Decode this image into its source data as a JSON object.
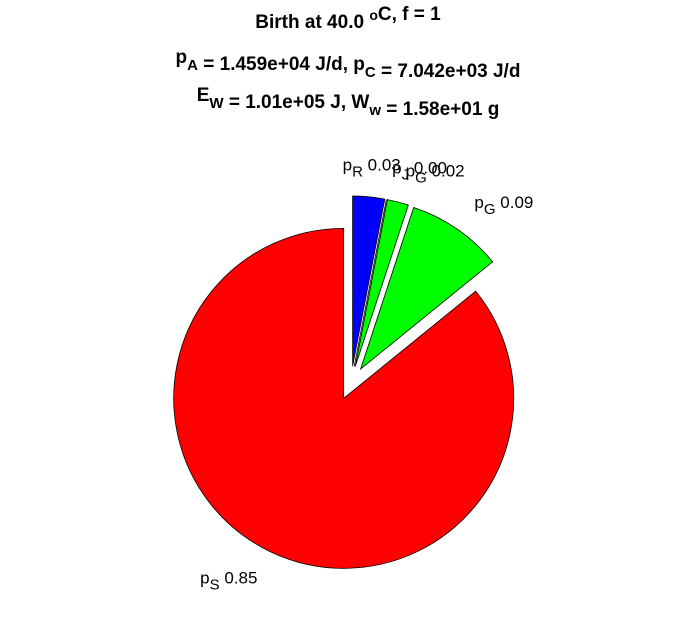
{
  "chart_data": {
    "type": "pie",
    "title_lines": [
      [
        {
          "text": "Birth at 40.0 "
        },
        {
          "sup": "o"
        },
        {
          "text": "C, f = 1"
        }
      ],
      [
        {
          "text": "p"
        },
        {
          "sub": "A"
        },
        {
          "text": " = 1.459e+04 J/d, p"
        },
        {
          "sub": "C"
        },
        {
          "text": " = 7.042e+03 J/d"
        }
      ],
      [
        {
          "text": "E"
        },
        {
          "sub": "W"
        },
        {
          "text": " = 1.01e+05 J, W"
        },
        {
          "sub": "w"
        },
        {
          "text": " = 1.58e+01 g"
        }
      ]
    ],
    "labels": [
      {
        "base": "p",
        "sub": "R"
      },
      {
        "base": "p",
        "sub": "J"
      },
      {
        "base": "p",
        "sub": "G"
      },
      {
        "base": "p",
        "sub": "G"
      },
      {
        "base": "p",
        "sub": "S"
      }
    ],
    "values": [
      0.03,
      0,
      0.02,
      0.09,
      0.85
    ],
    "value_labels": [
      "0.03",
      "0.00",
      "0.02",
      "0.09",
      "0.85"
    ],
    "colors": [
      "#0000ff",
      "#ff00ff",
      "#00ff00",
      "#00ff00",
      "#ff0000"
    ],
    "explode": true
  }
}
